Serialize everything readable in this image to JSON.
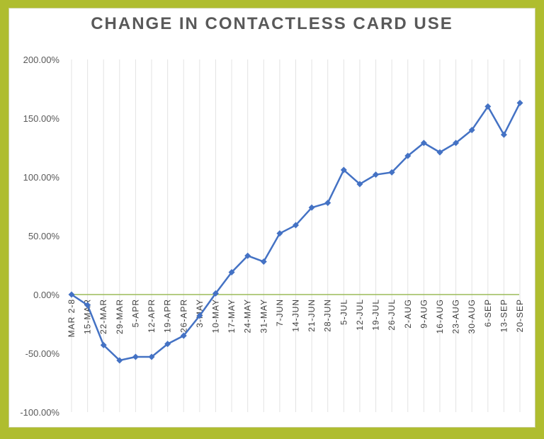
{
  "chart_data": {
    "type": "line",
    "title": "CHANGE IN CONTACTLESS CARD USE",
    "xlabel": "",
    "ylabel": "",
    "ylim": [
      -100,
      200
    ],
    "yticks": [
      "200.00%",
      "150.00%",
      "100.00%",
      "50.00%",
      "0.00%",
      "-50.00%",
      "-100.00%"
    ],
    "ytick_values": [
      200,
      150,
      100,
      50,
      0,
      -50,
      -100
    ],
    "grid": "vertical",
    "legend": "none",
    "categories": [
      "MAR 2-8",
      "15-MAR",
      "22-MAR",
      "29-MAR",
      "5-APR",
      "12-APR",
      "19-APR",
      "26-APR",
      "3-MAY",
      "10-MAY",
      "17-MAY",
      "24-MAY",
      "31-MAY",
      "7-JUN",
      "14-JUN",
      "21-JUN",
      "28-JUN",
      "5-JUL",
      "12-JUL",
      "19-JUL",
      "26-JUL",
      "2-AUG",
      "9-AUG",
      "16-AUG",
      "23-AUG",
      "30-AUG",
      "6-SEP",
      "13-SEP",
      "20-SEP"
    ],
    "series": [
      {
        "values": [
          0,
          -9,
          -43,
          -56,
          -53,
          -53,
          -42,
          -35,
          -18,
          1,
          19,
          33,
          28,
          52,
          59,
          74,
          78,
          106,
          94,
          102,
          104,
          118,
          129,
          121,
          129,
          140,
          160,
          136,
          163
        ]
      }
    ],
    "colors": {
      "line": "#4472c4",
      "zero_line": "#9bbb59",
      "grid": "#e3e3e3"
    }
  }
}
